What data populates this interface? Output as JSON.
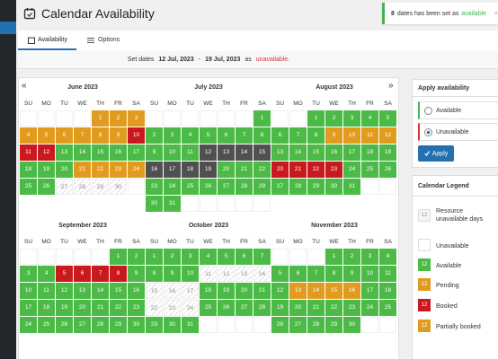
{
  "header": {
    "title": "Calendar Availability"
  },
  "notice": {
    "count": "8",
    "text": "dates has been set as",
    "status": "available",
    "close": "×"
  },
  "tabs": [
    "Availability",
    "Options"
  ],
  "set_dates": {
    "label": "Set dates",
    "start": "12 Jul, 2023",
    "separator": "-",
    "end": "19 Jul, 2023",
    "as": "as",
    "status": "unavailable."
  },
  "nav": {
    "prev": "«",
    "next": "»"
  },
  "weekdays": [
    "SU",
    "MO",
    "TU",
    "WE",
    "TH",
    "FR",
    "SA"
  ],
  "status_colors": {
    "a": "#4cba47",
    "p": "#e19b1f",
    "b": "#c9181e",
    "s": "#505050",
    "u": "#ffffff",
    "r": "#f4f4f4"
  },
  "months": [
    {
      "title": "June 2023",
      "weeks": [
        [
          null,
          null,
          null,
          null,
          1,
          2,
          3
        ],
        [
          4,
          5,
          6,
          7,
          8,
          9,
          10
        ],
        [
          11,
          12,
          13,
          14,
          15,
          16,
          17
        ],
        [
          18,
          19,
          20,
          21,
          22,
          23,
          24
        ],
        [
          25,
          26,
          27,
          28,
          29,
          30,
          null
        ]
      ],
      "status": [
        "....ppp",
        "ppppppb",
        "bbaaaaa",
        "aaapppp",
        "aauuuu."
      ]
    },
    {
      "title": "July 2023",
      "weeks": [
        [
          null,
          null,
          null,
          null,
          null,
          null,
          1
        ],
        [
          2,
          3,
          4,
          5,
          6,
          7,
          8
        ],
        [
          9,
          10,
          11,
          12,
          13,
          14,
          15
        ],
        [
          16,
          17,
          18,
          19,
          20,
          21,
          22
        ],
        [
          23,
          24,
          25,
          26,
          27,
          28,
          29
        ],
        [
          30,
          31,
          null,
          null,
          null,
          null,
          null
        ]
      ],
      "status": [
        "......a",
        "aaaaaaa",
        "aaassss",
        "ssssaaa",
        "aaaaaaa",
        "aa....."
      ]
    },
    {
      "title": "August 2023",
      "weeks": [
        [
          null,
          null,
          1,
          2,
          3,
          4,
          5
        ],
        [
          6,
          7,
          8,
          9,
          10,
          11,
          12
        ],
        [
          13,
          14,
          15,
          16,
          17,
          18,
          19
        ],
        [
          20,
          21,
          22,
          23,
          24,
          25,
          26
        ],
        [
          27,
          28,
          29,
          30,
          31,
          null,
          null
        ]
      ],
      "status": [
        "..aaaaa",
        "aaapppp",
        "aaaaaaa",
        "bbbbaaa",
        "aaaaa.."
      ]
    },
    {
      "title": "September 2023",
      "weeks": [
        [
          null,
          null,
          null,
          null,
          null,
          1,
          2
        ],
        [
          3,
          4,
          5,
          6,
          7,
          8,
          9
        ],
        [
          10,
          11,
          12,
          13,
          14,
          15,
          16
        ],
        [
          17,
          18,
          19,
          20,
          21,
          22,
          23
        ],
        [
          24,
          25,
          26,
          27,
          28,
          29,
          30
        ]
      ],
      "status": [
        ".....aa",
        "aabbbba",
        "aaaaaaa",
        "aaaaaaa",
        "aaaaaaa"
      ]
    },
    {
      "title": "October 2023",
      "weeks": [
        [
          1,
          2,
          3,
          4,
          5,
          6,
          7
        ],
        [
          8,
          9,
          10,
          11,
          12,
          13,
          14
        ],
        [
          15,
          16,
          17,
          18,
          19,
          20,
          21
        ],
        [
          22,
          23,
          24,
          25,
          26,
          27,
          28
        ],
        [
          29,
          30,
          31,
          null,
          null,
          null,
          null
        ]
      ],
      "status": [
        "aaaaaaa",
        "aaauuuu",
        "uuuaaaa",
        "uuuaaaa",
        "aaa...."
      ]
    },
    {
      "title": "November 2023",
      "weeks": [
        [
          null,
          null,
          null,
          1,
          2,
          3,
          4
        ],
        [
          5,
          6,
          7,
          8,
          9,
          10,
          11
        ],
        [
          12,
          13,
          14,
          15,
          16,
          17,
          18
        ],
        [
          19,
          20,
          21,
          22,
          23,
          24,
          25
        ],
        [
          26,
          27,
          28,
          29,
          30,
          null,
          null
        ]
      ],
      "status": [
        "...aaaa",
        "aaaaaaa",
        "appppaa",
        "aaaaaaa",
        "aaaaa.."
      ]
    }
  ],
  "apply": {
    "title": "Apply availability",
    "options": [
      "Available",
      "Unavailable"
    ],
    "selected": 1,
    "button": "Apply"
  },
  "legend": {
    "title": "Calendar Legend",
    "items": [
      {
        "sample": "12",
        "label": "Resource unavailable days",
        "status": "r"
      },
      {
        "label": "Unavailable",
        "status": "u"
      },
      {
        "sample": "12",
        "label": "Available",
        "status": "a"
      },
      {
        "sample": "12",
        "label": "Pending",
        "status": "p"
      },
      {
        "sample": "12",
        "label": "Booked",
        "status": "b"
      },
      {
        "sample": "12",
        "label": "Partially booked",
        "status": "p"
      }
    ]
  }
}
